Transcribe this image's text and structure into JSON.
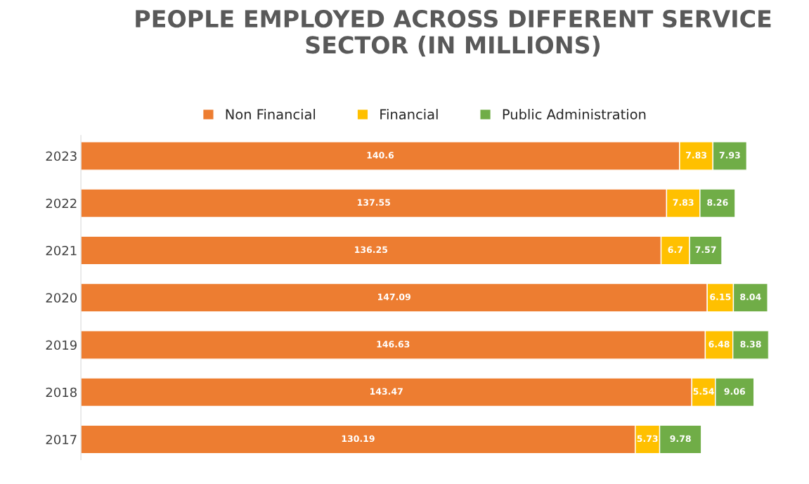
{
  "chart_data": {
    "type": "bar",
    "orientation": "horizontal",
    "stacked": true,
    "title": "PEOPLE EMPLOYED ACROSS DIFFERENT SERVICE SECTOR (IN MILLIONS)",
    "categories": [
      "2023",
      "2022",
      "2021",
      "2020",
      "2019",
      "2018",
      "2017"
    ],
    "series": [
      {
        "name": "Non Financial",
        "color": "#ed7d31",
        "values": [
          140.6,
          137.55,
          136.25,
          147.09,
          146.63,
          143.47,
          130.19
        ]
      },
      {
        "name": "Financial",
        "color": "#ffc000",
        "values": [
          7.83,
          7.83,
          6.7,
          6.15,
          6.48,
          5.54,
          5.73
        ]
      },
      {
        "name": "Public Administration",
        "color": "#70ad47",
        "values": [
          7.93,
          8.26,
          7.57,
          8.04,
          8.38,
          9.06,
          9.78
        ]
      }
    ],
    "data_labels": true,
    "legend": "top",
    "grid": false,
    "tick_labels": "y"
  }
}
